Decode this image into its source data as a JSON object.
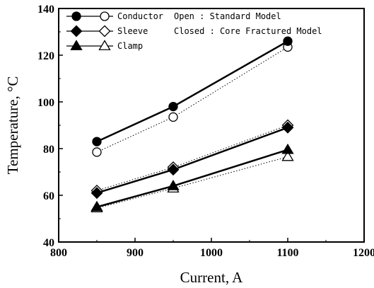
{
  "chart_data": {
    "type": "line",
    "xlabel": "Current, A",
    "ylabel": "Temperature, °C",
    "xlim": [
      800,
      1200
    ],
    "ylim": [
      40,
      140
    ],
    "xticks": [
      800,
      900,
      1000,
      1100,
      1200
    ],
    "yticks": [
      40,
      60,
      80,
      100,
      120,
      140
    ],
    "x": [
      850,
      950,
      1100
    ],
    "grid": false,
    "legend_position": "top-left",
    "series": [
      {
        "name": "Conductor",
        "marker": "circle",
        "model": "closed",
        "values": [
          83,
          98,
          126
        ]
      },
      {
        "name": "Conductor",
        "marker": "circle",
        "model": "open",
        "values": [
          78.5,
          93.5,
          123.5
        ]
      },
      {
        "name": "Sleeve",
        "marker": "diamond",
        "model": "closed",
        "values": [
          61,
          71,
          89
        ]
      },
      {
        "name": "Sleeve",
        "marker": "diamond",
        "model": "open",
        "values": [
          62,
          72,
          90
        ]
      },
      {
        "name": "Clamp",
        "marker": "triangle",
        "model": "closed",
        "values": [
          55,
          64,
          79.5
        ]
      },
      {
        "name": "Clamp",
        "marker": "triangle",
        "model": "open",
        "values": [
          54.5,
          63,
          76.5
        ]
      }
    ],
    "legend": {
      "entries": [
        "Conductor",
        "Sleeve",
        "Clamp"
      ],
      "notes": [
        "Open : Standard Model",
        "Closed : Core Fractured Model"
      ]
    }
  }
}
